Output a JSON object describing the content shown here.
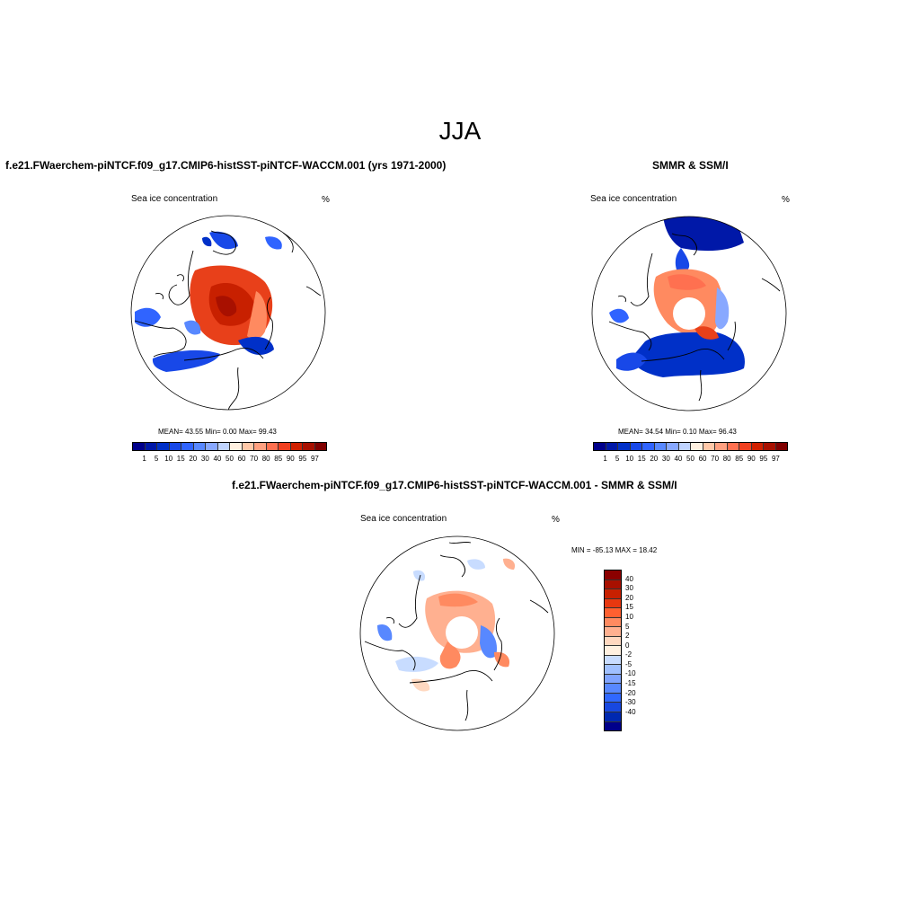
{
  "main_title": "JJA",
  "panels": [
    {
      "title": "f.e21.FWaerchem-piNTCF.f09_g17.CMIP6-histSST-piNTCF-WACCM.001 (yrs 1971-2000)",
      "variable": "Sea ice concentration",
      "units": "%",
      "stats": "MEAN=  43.55  Min=   0.00  Max=  99.43"
    },
    {
      "title": "SMMR & SSM/I",
      "variable": "Sea ice concentration",
      "units": "%",
      "stats": "MEAN=  34.54  Min=   0.10  Max=  96.43"
    },
    {
      "title": "f.e21.FWaerchem-piNTCF.f09_g17.CMIP6-histSST-piNTCF-WACCM.001 - SMMR & SSM/I",
      "variable": "Sea ice concentration",
      "units": "%",
      "stats": "MIN = -85.13 MAX =  18.42"
    }
  ],
  "abs_colorbar": {
    "labels": [
      "1",
      "5",
      "10",
      "15",
      "20",
      "30",
      "40",
      "50",
      "60",
      "70",
      "80",
      "85",
      "90",
      "95",
      "97"
    ],
    "colors": [
      "#00008b",
      "#0018a8",
      "#0030c8",
      "#1848e8",
      "#3064ff",
      "#5888ff",
      "#88a8ff",
      "#c0d4ff",
      "#fff0e0",
      "#ffc8a8",
      "#ffa080",
      "#ff7050",
      "#f04020",
      "#d02000",
      "#a81000",
      "#800000"
    ]
  },
  "diff_colorbar": {
    "labels": [
      "40",
      "30",
      "20",
      "15",
      "10",
      "5",
      "2",
      "0",
      "-2",
      "-5",
      "-10",
      "-15",
      "-20",
      "-30",
      "-40"
    ],
    "colors": [
      "#8b0000",
      "#a81000",
      "#c82000",
      "#e83810",
      "#ff6030",
      "#ff8a60",
      "#ffb090",
      "#ffd8c0",
      "#fff0e0",
      "#c8dcff",
      "#a0c0ff",
      "#80a4ff",
      "#5888ff",
      "#3068ff",
      "#1848e0",
      "#0028b0",
      "#00008b"
    ]
  }
}
